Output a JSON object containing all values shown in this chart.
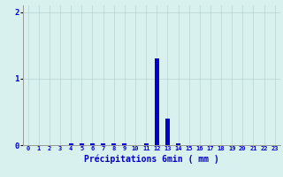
{
  "hours": [
    0,
    1,
    2,
    3,
    4,
    5,
    6,
    7,
    8,
    9,
    10,
    11,
    12,
    13,
    14,
    15,
    16,
    17,
    18,
    19,
    20,
    21,
    22,
    23
  ],
  "values": [
    0,
    0,
    0,
    0,
    0.02,
    0.02,
    0.02,
    0.02,
    0.02,
    0.02,
    0,
    0.02,
    1.3,
    0.4,
    0.02,
    0,
    0,
    0,
    0,
    0,
    0,
    0,
    0,
    0
  ],
  "bar_color": "#0000cc",
  "bg_color": "#d8f0ee",
  "grid_color": "#b8d4d0",
  "axis_color": "#0000cc",
  "tick_color": "#0000cc",
  "xlabel": "Précipitations 6min ( mm )",
  "xlabel_fontsize": 7,
  "ylim": [
    0,
    2.1
  ],
  "yticks": [
    0,
    1,
    2
  ],
  "xlim": [
    -0.5,
    23.5
  ]
}
